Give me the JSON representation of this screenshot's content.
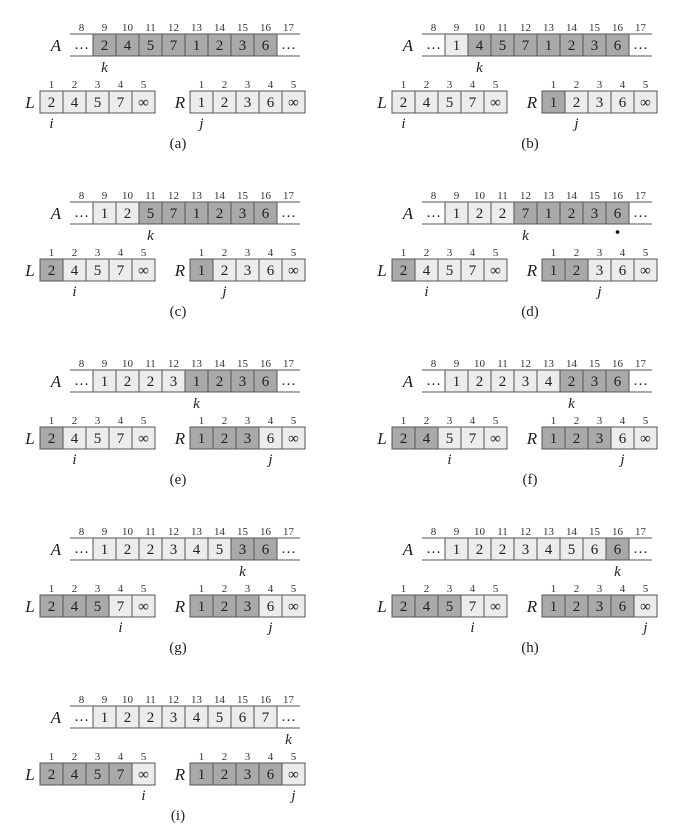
{
  "diagram": {
    "a_indices": [
      "8",
      "9",
      "10",
      "11",
      "12",
      "13",
      "14",
      "15",
      "16",
      "17"
    ],
    "lr_indices": [
      "1",
      "2",
      "3",
      "4",
      "5"
    ],
    "labels": {
      "A": "A",
      "L": "L",
      "R": "R",
      "k": "k",
      "i": "i",
      "j": "j"
    },
    "ellipsis": "…",
    "infinity": "∞",
    "colors": {
      "dark": "#a9a9a9",
      "light": "#ececec",
      "none": "#ffffff",
      "border": "#555555"
    },
    "dot_marker_panel": "d",
    "panels": [
      {
        "caption": "(a)",
        "A": [
          "2",
          "4",
          "5",
          "7",
          "1",
          "2",
          "3",
          "6"
        ],
        "A_shade": [
          "d",
          "d",
          "d",
          "d",
          "d",
          "d",
          "d",
          "d"
        ],
        "L": [
          "2",
          "4",
          "5",
          "7",
          "∞"
        ],
        "L_shade": [
          "l",
          "l",
          "l",
          "l",
          "l"
        ],
        "R": [
          "1",
          "2",
          "3",
          "6",
          "∞"
        ],
        "R_shade": [
          "l",
          "l",
          "l",
          "l",
          "l"
        ],
        "k": 9,
        "i": 1,
        "j": 1
      },
      {
        "caption": "(b)",
        "A": [
          "1",
          "4",
          "5",
          "7",
          "1",
          "2",
          "3",
          "6"
        ],
        "A_shade": [
          "l",
          "d",
          "d",
          "d",
          "d",
          "d",
          "d",
          "d"
        ],
        "L": [
          "2",
          "4",
          "5",
          "7",
          "∞"
        ],
        "L_shade": [
          "l",
          "l",
          "l",
          "l",
          "l"
        ],
        "R": [
          "1",
          "2",
          "3",
          "6",
          "∞"
        ],
        "R_shade": [
          "d",
          "l",
          "l",
          "l",
          "l"
        ],
        "k": 10,
        "i": 1,
        "j": 2
      },
      {
        "caption": "(c)",
        "A": [
          "1",
          "2",
          "5",
          "7",
          "1",
          "2",
          "3",
          "6"
        ],
        "A_shade": [
          "l",
          "l",
          "d",
          "d",
          "d",
          "d",
          "d",
          "d"
        ],
        "L": [
          "2",
          "4",
          "5",
          "7",
          "∞"
        ],
        "L_shade": [
          "d",
          "l",
          "l",
          "l",
          "l"
        ],
        "R": [
          "1",
          "2",
          "3",
          "6",
          "∞"
        ],
        "R_shade": [
          "d",
          "l",
          "l",
          "l",
          "l"
        ],
        "k": 11,
        "i": 2,
        "j": 2
      },
      {
        "caption": "(d)",
        "A": [
          "1",
          "2",
          "2",
          "7",
          "1",
          "2",
          "3",
          "6"
        ],
        "A_shade": [
          "l",
          "l",
          "l",
          "d",
          "d",
          "d",
          "d",
          "d"
        ],
        "L": [
          "2",
          "4",
          "5",
          "7",
          "∞"
        ],
        "L_shade": [
          "d",
          "l",
          "l",
          "l",
          "l"
        ],
        "R": [
          "1",
          "2",
          "3",
          "6",
          "∞"
        ],
        "R_shade": [
          "d",
          "d",
          "l",
          "l",
          "l"
        ],
        "k": 12,
        "i": 2,
        "j": 3
      },
      {
        "caption": "(e)",
        "A": [
          "1",
          "2",
          "2",
          "3",
          "1",
          "2",
          "3",
          "6"
        ],
        "A_shade": [
          "l",
          "l",
          "l",
          "l",
          "d",
          "d",
          "d",
          "d"
        ],
        "L": [
          "2",
          "4",
          "5",
          "7",
          "∞"
        ],
        "L_shade": [
          "d",
          "l",
          "l",
          "l",
          "l"
        ],
        "R": [
          "1",
          "2",
          "3",
          "6",
          "∞"
        ],
        "R_shade": [
          "d",
          "d",
          "d",
          "l",
          "l"
        ],
        "k": 13,
        "i": 2,
        "j": 4
      },
      {
        "caption": "(f)",
        "A": [
          "1",
          "2",
          "2",
          "3",
          "4",
          "2",
          "3",
          "6"
        ],
        "A_shade": [
          "l",
          "l",
          "l",
          "l",
          "l",
          "d",
          "d",
          "d"
        ],
        "L": [
          "2",
          "4",
          "5",
          "7",
          "∞"
        ],
        "L_shade": [
          "d",
          "d",
          "l",
          "l",
          "l"
        ],
        "R": [
          "1",
          "2",
          "3",
          "6",
          "∞"
        ],
        "R_shade": [
          "d",
          "d",
          "d",
          "l",
          "l"
        ],
        "k": 14,
        "i": 3,
        "j": 4
      },
      {
        "caption": "(g)",
        "A": [
          "1",
          "2",
          "2",
          "3",
          "4",
          "5",
          "3",
          "6"
        ],
        "A_shade": [
          "l",
          "l",
          "l",
          "l",
          "l",
          "l",
          "d",
          "d"
        ],
        "L": [
          "2",
          "4",
          "5",
          "7",
          "∞"
        ],
        "L_shade": [
          "d",
          "d",
          "d",
          "l",
          "l"
        ],
        "R": [
          "1",
          "2",
          "3",
          "6",
          "∞"
        ],
        "R_shade": [
          "d",
          "d",
          "d",
          "l",
          "l"
        ],
        "k": 15,
        "i": 4,
        "j": 4
      },
      {
        "caption": "(h)",
        "A": [
          "1",
          "2",
          "2",
          "3",
          "4",
          "5",
          "6",
          "6"
        ],
        "A_shade": [
          "l",
          "l",
          "l",
          "l",
          "l",
          "l",
          "l",
          "d"
        ],
        "L": [
          "2",
          "4",
          "5",
          "7",
          "∞"
        ],
        "L_shade": [
          "d",
          "d",
          "d",
          "l",
          "l"
        ],
        "R": [
          "1",
          "2",
          "3",
          "6",
          "∞"
        ],
        "R_shade": [
          "d",
          "d",
          "d",
          "d",
          "l"
        ],
        "k": 16,
        "i": 4,
        "j": 5
      },
      {
        "caption": "(i)",
        "A": [
          "1",
          "2",
          "2",
          "3",
          "4",
          "5",
          "6",
          "7"
        ],
        "A_shade": [
          "l",
          "l",
          "l",
          "l",
          "l",
          "l",
          "l",
          "l"
        ],
        "L": [
          "2",
          "4",
          "5",
          "7",
          "∞"
        ],
        "L_shade": [
          "d",
          "d",
          "d",
          "d",
          "l"
        ],
        "R": [
          "1",
          "2",
          "3",
          "6",
          "∞"
        ],
        "R_shade": [
          "d",
          "d",
          "d",
          "d",
          "l"
        ],
        "k": 17,
        "i": 5,
        "j": 5
      }
    ]
  }
}
